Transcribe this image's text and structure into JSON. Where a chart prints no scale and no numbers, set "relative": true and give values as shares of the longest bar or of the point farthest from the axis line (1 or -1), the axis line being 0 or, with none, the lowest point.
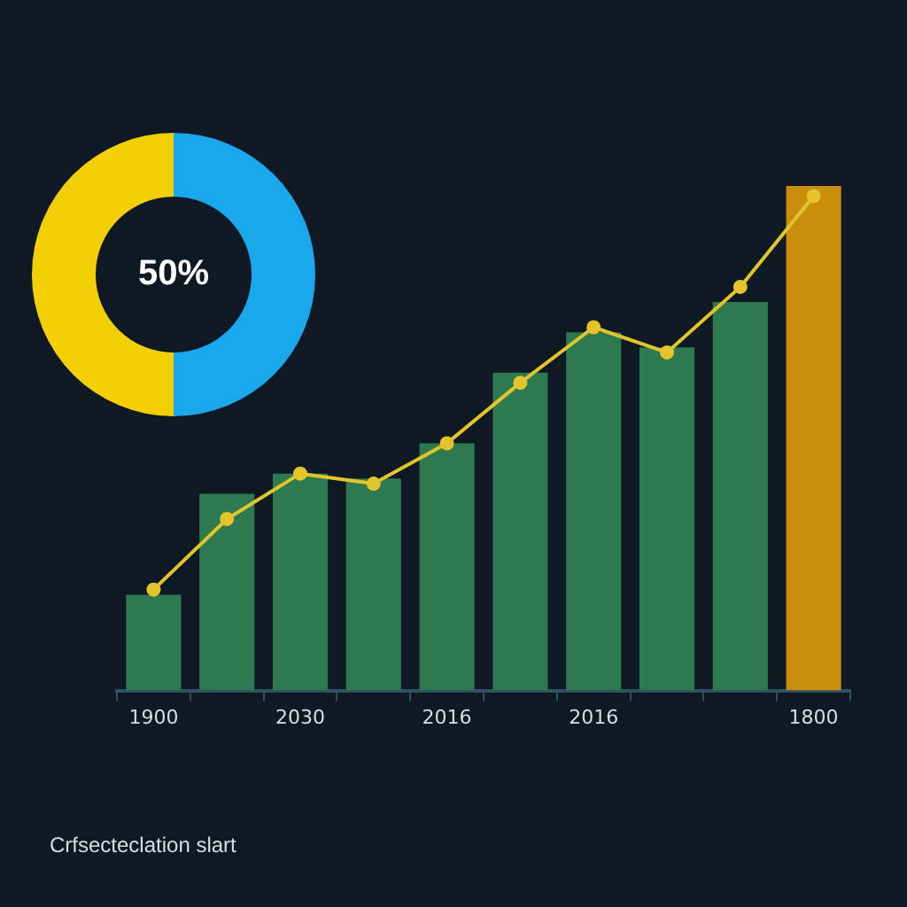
{
  "chart_data": [
    {
      "type": "donut",
      "categories": [
        null,
        null
      ],
      "values": [
        50,
        50
      ],
      "colors": [
        "#1aa8ec",
        "#f5cf06"
      ],
      "annotations": [
        "50%"
      ]
    },
    {
      "type": "bar",
      "relative": true,
      "categories": [
        "1900",
        null,
        "2030",
        null,
        "2016",
        null,
        "2016",
        null,
        null,
        "1800"
      ],
      "marker": "circle",
      "annotations": [
        "Crfsecteclation slart"
      ],
      "series": [
        {
          "type": "bar",
          "colors": [
            "#2e7a50",
            "#2e7a50",
            "#2e7a50",
            "#2e7a50",
            "#2e7a50",
            "#2e7a50",
            "#2e7a50",
            "#2e7a50",
            "#2e7a50",
            "#c98e0c"
          ],
          "values": [
            0.19,
            0.39,
            0.43,
            0.42,
            0.49,
            0.63,
            0.71,
            0.68,
            0.77,
            1
          ]
        },
        {
          "type": "line",
          "color": "#e3c42a",
          "values": [
            0.2,
            0.34,
            0.43,
            0.41,
            0.49,
            0.61,
            0.72,
            0.67,
            0.8,
            0.98
          ]
        }
      ]
    }
  ]
}
